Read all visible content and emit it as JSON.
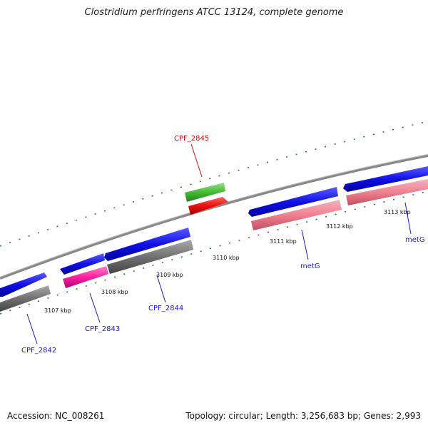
{
  "title": "Clostridium perfringens ATCC 13124, complete genome",
  "footer": {
    "accession": "Accession: NC_008261",
    "summary": "Topology: circular; Length: 3,256,683 bp; Genes: 2,993"
  },
  "colors": {
    "cds_blue": "#1010e8",
    "gene_gray": "#707070",
    "pseudo_pink": "#f080a0",
    "magenta": "#ff20a0",
    "rna_red": "#ee1010",
    "rna_green": "#44bb33",
    "tick_green": "#2a7a2a",
    "label_blue": "#1a1acc",
    "label_red": "#cc1111"
  },
  "ticks": [
    "3107 kbp",
    "3108 kbp",
    "3109 kbp",
    "3110 kbp",
    "3111 kbp",
    "3112 kbp",
    "3113 kbp"
  ],
  "gene_labels": [
    "CPF_2842",
    "CPF_2843",
    "CPF_2844",
    "CPF_2845",
    "metG",
    "metG"
  ]
}
